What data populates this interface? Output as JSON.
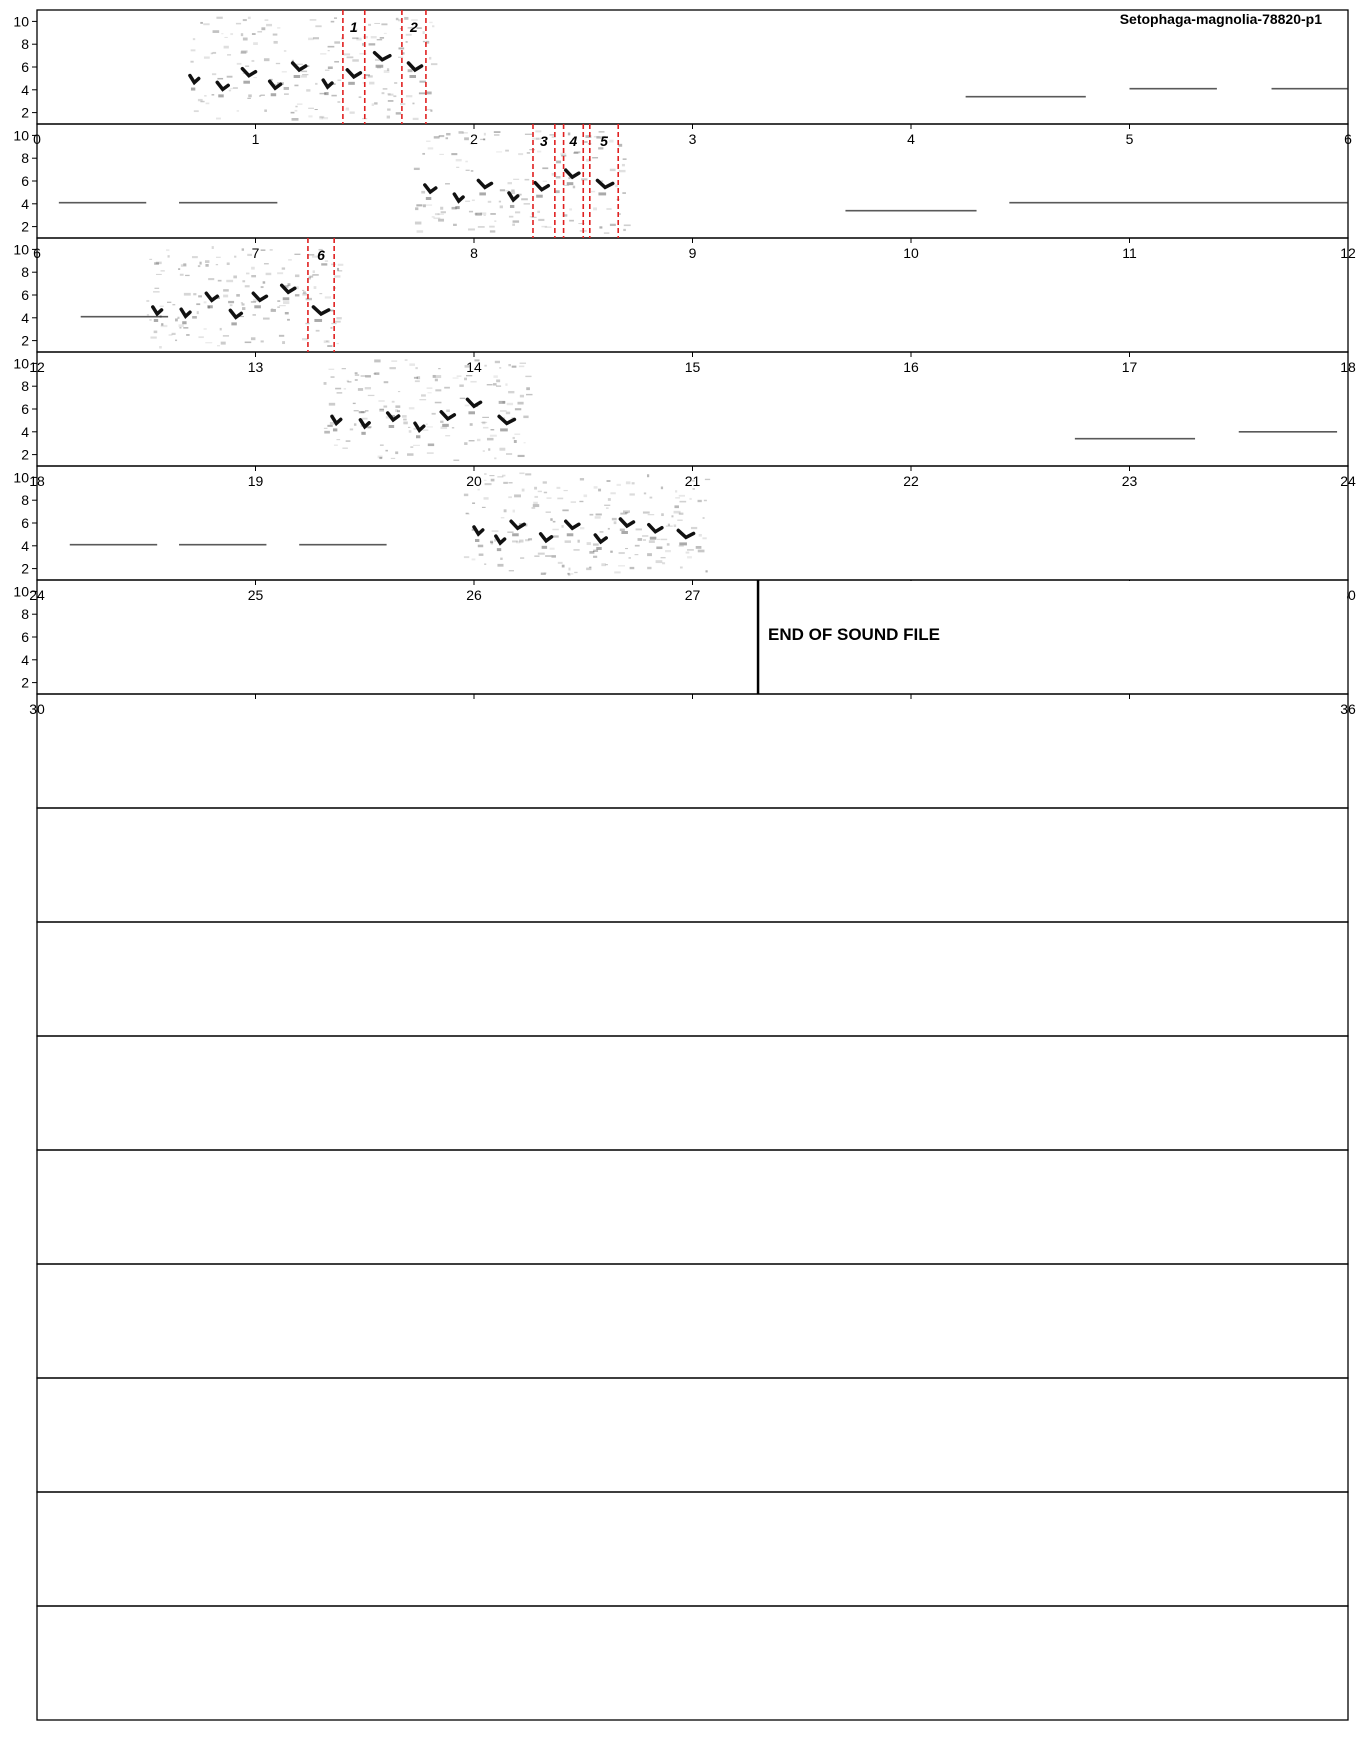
{
  "title": "Setophaga-magnolia-78820-p1",
  "end_label": "END OF SOUND FILE",
  "chart_data": {
    "type": "spectrogram",
    "seconds_per_row": 6,
    "x_unit": "s",
    "y_unit": "kHz",
    "ylim": [
      1,
      11
    ],
    "y_ticks": [
      2,
      4,
      6,
      8,
      10
    ],
    "total_rows": 15,
    "sound_rows": 6,
    "end_of_file_time": 33.3,
    "rows": [
      {
        "x_start": 0,
        "x_end": 6,
        "x_ticks": [
          "0",
          "1",
          "2",
          "3",
          "4",
          "5",
          "6"
        ]
      },
      {
        "x_start": 6,
        "x_end": 12,
        "x_ticks": [
          "6",
          "7",
          "8",
          "9",
          "10",
          "11",
          "12"
        ]
      },
      {
        "x_start": 12,
        "x_end": 18,
        "x_ticks": [
          "12",
          "13",
          "14",
          "15",
          "16",
          "17",
          "18"
        ]
      },
      {
        "x_start": 18,
        "x_end": 24,
        "x_ticks": [
          "18",
          "19",
          "20",
          "21",
          "22",
          "23",
          "24"
        ]
      },
      {
        "x_start": 24,
        "x_end": 30,
        "x_ticks": [
          "24",
          "25",
          "26",
          "27",
          "28",
          "29",
          "30"
        ]
      },
      {
        "x_start": 30,
        "x_end": 36,
        "x_ticks": [
          "30",
          "",
          "",
          "",
          "",
          "",
          "36"
        ]
      }
    ],
    "selections": [
      {
        "label": "1",
        "start": 1.4,
        "end": 1.5
      },
      {
        "label": "2",
        "start": 1.67,
        "end": 1.78
      },
      {
        "label": "3",
        "start": 8.27,
        "end": 8.37
      },
      {
        "label": "4",
        "start": 8.41,
        "end": 8.5
      },
      {
        "label": "5",
        "start": 8.53,
        "end": 8.66
      },
      {
        "label": "6",
        "start": 13.24,
        "end": 13.36
      }
    ],
    "songs": [
      {
        "start": 0.7,
        "end": 1.82,
        "notes": [
          {
            "t": 0.72,
            "f": 4.9,
            "w": 0.04
          },
          {
            "t": 0.85,
            "f": 4.3,
            "w": 0.05
          },
          {
            "t": 0.97,
            "f": 5.5,
            "w": 0.06
          },
          {
            "t": 1.09,
            "f": 4.4,
            "w": 0.05
          },
          {
            "t": 1.2,
            "f": 6.0,
            "w": 0.06
          },
          {
            "t": 1.33,
            "f": 4.5,
            "w": 0.04
          },
          {
            "t": 1.45,
            "f": 5.4,
            "w": 0.06
          },
          {
            "t": 1.58,
            "f": 6.9,
            "w": 0.07
          },
          {
            "t": 1.73,
            "f": 6.0,
            "w": 0.06
          }
        ]
      },
      {
        "start": 7.72,
        "end": 8.7,
        "notes": [
          {
            "t": 7.8,
            "f": 5.3,
            "w": 0.05
          },
          {
            "t": 7.93,
            "f": 4.5,
            "w": 0.04
          },
          {
            "t": 8.05,
            "f": 5.7,
            "w": 0.06
          },
          {
            "t": 8.18,
            "f": 4.6,
            "w": 0.04
          },
          {
            "t": 8.31,
            "f": 5.5,
            "w": 0.06
          },
          {
            "t": 8.45,
            "f": 6.6,
            "w": 0.06
          },
          {
            "t": 8.6,
            "f": 5.7,
            "w": 0.07
          }
        ]
      },
      {
        "start": 12.5,
        "end": 13.38,
        "notes": [
          {
            "t": 12.55,
            "f": 4.6,
            "w": 0.04
          },
          {
            "t": 12.68,
            "f": 4.4,
            "w": 0.04
          },
          {
            "t": 12.8,
            "f": 5.8,
            "w": 0.05
          },
          {
            "t": 12.91,
            "f": 4.3,
            "w": 0.05
          },
          {
            "t": 13.02,
            "f": 5.8,
            "w": 0.06
          },
          {
            "t": 13.15,
            "f": 6.5,
            "w": 0.06
          },
          {
            "t": 13.3,
            "f": 4.6,
            "w": 0.07
          }
        ]
      },
      {
        "start": 19.3,
        "end": 20.25,
        "notes": [
          {
            "t": 19.37,
            "f": 5.0,
            "w": 0.04
          },
          {
            "t": 19.5,
            "f": 4.7,
            "w": 0.04
          },
          {
            "t": 19.63,
            "f": 5.3,
            "w": 0.05
          },
          {
            "t": 19.75,
            "f": 4.4,
            "w": 0.04
          },
          {
            "t": 19.88,
            "f": 5.4,
            "w": 0.06
          },
          {
            "t": 20.0,
            "f": 6.5,
            "w": 0.06
          },
          {
            "t": 20.15,
            "f": 5.0,
            "w": 0.07
          }
        ]
      },
      {
        "start": 25.95,
        "end": 27.05,
        "notes": [
          {
            "t": 26.02,
            "f": 5.3,
            "w": 0.04
          },
          {
            "t": 26.12,
            "f": 4.5,
            "w": 0.04
          },
          {
            "t": 26.2,
            "f": 5.8,
            "w": 0.06
          },
          {
            "t": 26.33,
            "f": 4.7,
            "w": 0.05
          },
          {
            "t": 26.45,
            "f": 5.8,
            "w": 0.06
          },
          {
            "t": 26.58,
            "f": 4.6,
            "w": 0.05
          },
          {
            "t": 26.7,
            "f": 6.0,
            "w": 0.06
          },
          {
            "t": 26.83,
            "f": 5.5,
            "w": 0.06
          },
          {
            "t": 26.97,
            "f": 5.0,
            "w": 0.07
          }
        ]
      }
    ],
    "tones": [
      {
        "start": 4.25,
        "end": 4.8,
        "f": 3.4
      },
      {
        "start": 5.0,
        "end": 5.4,
        "f": 4.1
      },
      {
        "start": 5.65,
        "end": 6.0,
        "f": 4.1
      },
      {
        "start": 6.1,
        "end": 6.5,
        "f": 4.1
      },
      {
        "start": 6.65,
        "end": 7.1,
        "f": 4.1
      },
      {
        "start": 9.7,
        "end": 10.3,
        "f": 3.4
      },
      {
        "start": 10.45,
        "end": 12.0,
        "f": 4.1
      },
      {
        "start": 12.2,
        "end": 12.6,
        "f": 4.1
      },
      {
        "start": 22.75,
        "end": 23.3,
        "f": 3.4
      },
      {
        "start": 23.5,
        "end": 23.95,
        "f": 4.0
      },
      {
        "start": 24.15,
        "end": 24.55,
        "f": 4.1
      },
      {
        "start": 24.65,
        "end": 25.05,
        "f": 4.1
      },
      {
        "start": 25.2,
        "end": 25.6,
        "f": 4.1
      }
    ]
  }
}
